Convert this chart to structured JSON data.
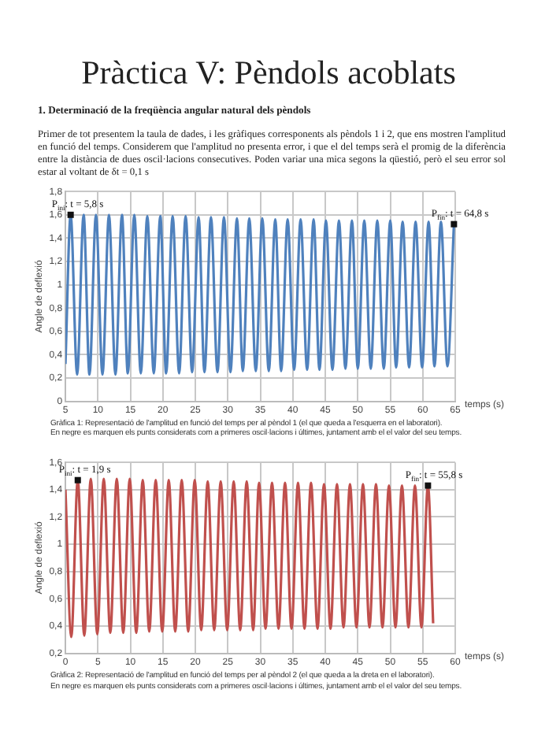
{
  "chart_data": [
    {
      "type": "line",
      "title": "Pràctica V: Pèndols acoblats",
      "subtitle": "1. Determinació de la freqüència angular natural dels pèndols",
      "xlabel": "temps (s)",
      "ylabel": "Angle de deflexió",
      "annotations": [
        "Primer de tot presentem la taula de dades, i les gràfiques corresponents als pèndols 1 i 2, que ens mostren l'amplitud en funció del temps. Considerem que l'amplitud no presenta error, i que el del temps serà el promig de la diferència entre la distància de dues oscil·lacions consecutives. Poden variar una mica segons la qüestió, però el seu error sol estar al voltant de δt = 0,1 s",
        {
          "text": "P$_{ini}$: t = 5,8 s",
          "x": 5.8,
          "y": 1.6
        },
        {
          "text": "P$_{fin}$: t = 64,8 s",
          "x": 64.8,
          "y": 1.52
        },
        "Gràfica 1: Representació de l'amplitud en funció del temps per al pèndol 1 (el que queda a l'esquerra en el laboratori).",
        "En negre es marquen els punts considerats com a primeres oscil·lacions i últimes, juntament amb el el valor del seu temps."
      ],
      "x": [
        5.0,
        5.8,
        6.8,
        7.8,
        8.7,
        9.7,
        10.7,
        11.7,
        12.7,
        13.7,
        14.6,
        15.6,
        16.6,
        17.6,
        18.6,
        19.6,
        20.5,
        21.5,
        22.5,
        23.5,
        24.5,
        25.5,
        26.4,
        27.4,
        28.4,
        29.4,
        30.4,
        31.4,
        32.3,
        33.3,
        34.3,
        35.3,
        36.3,
        37.3,
        38.2,
        39.2,
        40.2,
        41.2,
        42.2,
        43.2,
        44.1,
        45.1,
        46.1,
        47.1,
        48.1,
        49.1,
        50.0,
        51.0,
        52.0,
        53.0,
        54.0,
        55.0,
        55.9,
        56.9,
        57.9,
        58.9,
        59.9,
        60.9,
        61.8,
        62.8,
        63.8,
        64.8
      ],
      "series": [
        {
          "color": "#4f81bd",
          "values": [
            0.32,
            1.6,
            0.23,
            1.6,
            0.23,
            1.6,
            0.23,
            1.6,
            0.23,
            1.6,
            0.24,
            1.6,
            0.24,
            1.59,
            0.24,
            1.59,
            0.24,
            1.59,
            0.24,
            1.59,
            0.25,
            1.58,
            0.25,
            1.58,
            0.25,
            1.58,
            0.25,
            1.57,
            0.26,
            1.57,
            0.26,
            1.57,
            0.26,
            1.56,
            0.26,
            1.56,
            0.27,
            1.56,
            0.27,
            1.56,
            0.27,
            1.55,
            0.27,
            1.55,
            0.28,
            1.55,
            0.28,
            1.55,
            0.28,
            1.55,
            0.28,
            1.55,
            0.29,
            1.54,
            0.29,
            1.54,
            0.29,
            1.54,
            0.3,
            1.54,
            0.3,
            1.52
          ]
        }
      ],
      "xlim": [
        5,
        65
      ],
      "xticks": [
        5,
        10,
        15,
        20,
        25,
        30,
        35,
        40,
        45,
        50,
        55,
        60,
        65
      ],
      "ylim": [
        0,
        1.8
      ],
      "yticks": [
        {
          "value": 0,
          "label": "0"
        },
        {
          "value": 0.2,
          "label": "0,2"
        },
        {
          "value": 0.4,
          "label": "0,4"
        },
        {
          "value": 0.6,
          "label": "0,6"
        },
        {
          "value": 0.8,
          "label": "0,8"
        },
        {
          "value": 1,
          "label": "1"
        },
        {
          "value": 1.2,
          "label": "1,2"
        },
        {
          "value": 1.4,
          "label": "1,4"
        },
        {
          "value": 1.6,
          "label": "1,6"
        },
        {
          "value": 1.8,
          "label": "1,8"
        }
      ],
      "grid": true
    },
    {
      "type": "line",
      "xlabel": "temps (s)",
      "ylabel": "Angle de deflexió",
      "annotations": [
        {
          "text": "P$_{ini}$: t = 1,9 s",
          "x": 1.9,
          "y": 1.47
        },
        {
          "text": "P$_{fin}$: t = 55,8 s",
          "x": 55.8,
          "y": 1.43
        },
        "Gràfica 2: Representació de l'amplitud en funció del temps per al pèndol 2 (el que queda a la dreta en el laboratori).",
        "En negre es marquen els punts considerats com a primeres oscil·lacions i últimes, juntament amb el el valor del seu temps."
      ],
      "x": [
        0,
        0.9,
        1.9,
        2.9,
        3.9,
        4.9,
        5.9,
        6.9,
        7.9,
        8.9,
        9.9,
        10.9,
        11.9,
        12.9,
        13.9,
        14.9,
        15.9,
        16.9,
        17.9,
        18.9,
        19.9,
        20.9,
        21.9,
        22.9,
        23.9,
        24.9,
        25.9,
        26.9,
        27.9,
        28.9,
        29.8,
        30.8,
        31.8,
        32.8,
        33.8,
        34.8,
        35.8,
        36.8,
        37.8,
        38.8,
        39.8,
        40.8,
        41.8,
        42.8,
        43.8,
        44.8,
        45.8,
        46.8,
        47.8,
        48.8,
        49.8,
        50.8,
        51.8,
        52.8,
        53.8,
        54.8,
        55.8,
        56.6
      ],
      "series": [
        {
          "color": "#c0504d",
          "values": [
            1.4,
            0.32,
            1.47,
            0.33,
            1.48,
            0.34,
            1.48,
            0.35,
            1.48,
            0.35,
            1.48,
            0.35,
            1.47,
            0.36,
            1.47,
            0.36,
            1.47,
            0.36,
            1.47,
            0.36,
            1.47,
            0.37,
            1.46,
            0.37,
            1.46,
            0.37,
            1.46,
            0.37,
            1.46,
            0.37,
            1.45,
            0.38,
            1.45,
            0.38,
            1.45,
            0.38,
            1.45,
            0.38,
            1.45,
            0.38,
            1.44,
            0.38,
            1.44,
            0.39,
            1.44,
            0.39,
            1.44,
            0.39,
            1.44,
            0.39,
            1.43,
            0.39,
            1.43,
            0.39,
            1.43,
            0.39,
            1.43,
            0.42
          ]
        }
      ],
      "xlim": [
        0,
        60
      ],
      "xticks": [
        0,
        5,
        10,
        15,
        20,
        25,
        30,
        35,
        40,
        45,
        50,
        55,
        60
      ],
      "ylim": [
        0.2,
        1.6
      ],
      "yticks": [
        {
          "value": 0.2,
          "label": "0,2"
        },
        {
          "value": 0.4,
          "label": "0,4"
        },
        {
          "value": 0.6,
          "label": "0,6"
        },
        {
          "value": 0.8,
          "label": "0,8"
        },
        {
          "value": 1,
          "label": "1"
        },
        {
          "value": 1.2,
          "label": "1,2"
        },
        {
          "value": 1.4,
          "label": "1,4"
        },
        {
          "value": 1.6,
          "label": "1,6"
        }
      ],
      "grid": true
    }
  ]
}
